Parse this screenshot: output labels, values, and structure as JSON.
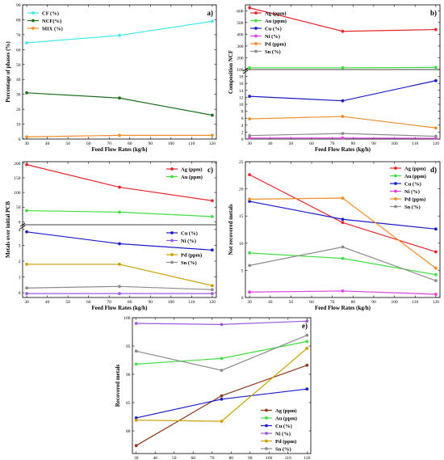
{
  "chart_data": [
    {
      "id": "a",
      "panel_label": "a)",
      "type": "line",
      "xlabel": "Feed Flow Rates (kg/h)",
      "ylabel": "Percentage of phases (%)",
      "x": [
        30,
        75,
        120
      ],
      "xlim": [
        28,
        122
      ],
      "xticks": [
        30,
        40,
        50,
        60,
        70,
        80,
        90,
        100,
        110,
        120
      ],
      "ylim": [
        0,
        90
      ],
      "yticks": [
        0,
        10,
        20,
        30,
        40,
        50,
        60,
        70,
        80,
        90
      ],
      "legend": "top-left",
      "series": [
        {
          "name": "CF (%)",
          "color": "#40e8e8",
          "values": [
            64.5,
            69.5,
            79
          ]
        },
        {
          "name": "NCF(%)",
          "color": "#1a6e1a",
          "values": [
            31,
            27.5,
            16
          ]
        },
        {
          "name": "MIX (%)",
          "color": "#f08c28",
          "values": [
            1.5,
            2.5,
            2.5
          ]
        }
      ]
    },
    {
      "id": "b",
      "panel_label": "b)",
      "type": "line",
      "xlabel": "Feed Flow Rates (kg/h)",
      "ylabel": "Composition NCF",
      "x": [
        30,
        75,
        120
      ],
      "xlim": [
        28,
        122
      ],
      "xticks": [
        30,
        40,
        50,
        60,
        70,
        80,
        90,
        100,
        110,
        120
      ],
      "broken_axis": {
        "upper": {
          "ylim": [
            100,
            650
          ],
          "yticks": [
            100,
            200,
            300,
            400,
            500,
            600
          ]
        },
        "lower": {
          "ylim": [
            0,
            20
          ],
          "yticks": [
            0,
            2,
            4,
            6,
            8,
            10,
            12,
            14,
            16,
            18
          ]
        }
      },
      "legend": "top-left",
      "series": [
        {
          "name": "Ag (ppm)",
          "color": "#e8262c",
          "values": [
            625,
            425,
            440
          ]
        },
        {
          "name": "Au (ppm)",
          "color": "#40e040",
          "values": [
            115,
            115,
            118
          ]
        },
        {
          "name": "Cu (%)",
          "color": "#1c1cc8",
          "values": [
            12.3,
            11.0,
            16.8
          ]
        },
        {
          "name": "Ni (%)",
          "color": "#e040e0",
          "values": [
            0.3,
            0.3,
            0.2
          ]
        },
        {
          "name": "Pd (ppm)",
          "color": "#f08c28",
          "values": [
            5.8,
            6.5,
            3.2
          ]
        },
        {
          "name": "Sn (%)",
          "color": "#8c8c8c",
          "values": [
            1.0,
            1.6,
            0.8
          ]
        }
      ]
    },
    {
      "id": "c",
      "panel_label": "c)",
      "type": "line",
      "xlabel": "Feed Flow Rates (kg/h)",
      "ylabel": "Metals over initial PCB",
      "x": [
        30,
        75,
        120
      ],
      "xlim": [
        28,
        122
      ],
      "xticks": [
        30,
        40,
        50,
        60,
        70,
        80,
        90,
        100,
        110,
        120
      ],
      "broken_axis": {
        "upper": {
          "ylim": [
            -10,
            205
          ],
          "yticks": [
            0,
            50,
            100,
            150,
            200
          ]
        },
        "lower": {
          "ylim": [
            -0.3,
            4.3
          ],
          "yticks": [
            0,
            1,
            2,
            3,
            4
          ]
        }
      },
      "legend": "right",
      "series": [
        {
          "name": "Ag (ppm)",
          "color": "#e8262c",
          "panel": "upper",
          "values": [
            195,
            118,
            72
          ]
        },
        {
          "name": "Au (ppm)",
          "color": "#40e040",
          "panel": "upper",
          "values": [
            38,
            33,
            18
          ]
        },
        {
          "name": "Cu (%)",
          "color": "#1c1cc8",
          "panel": "lower",
          "values": [
            3.85,
            3.1,
            2.7
          ]
        },
        {
          "name": "Ni (%)",
          "color": "#9b59e0",
          "panel": "lower",
          "values": [
            -0.05,
            -0.05,
            -0.05
          ]
        },
        {
          "name": "Pd (ppm)",
          "color": "#c8a000",
          "panel": "lower",
          "values": [
            1.8,
            1.8,
            0.45
          ]
        },
        {
          "name": "Sn (%)",
          "color": "#8c8c8c",
          "panel": "lower",
          "values": [
            0.3,
            0.4,
            0.2
          ]
        }
      ]
    },
    {
      "id": "d",
      "panel_label": "d)",
      "type": "line",
      "xlabel": "Feed Flow Rates (kg/h)",
      "ylabel": "Not recovered metals",
      "x": [
        30,
        75,
        120
      ],
      "xlim": [
        28,
        122
      ],
      "xticks": [
        30,
        40,
        50,
        60,
        70,
        80,
        90,
        100,
        110,
        120
      ],
      "ylim": [
        0,
        25
      ],
      "yticks": [
        0,
        5,
        10,
        15,
        20,
        25
      ],
      "legend": "top-right",
      "series": [
        {
          "name": "Ag (ppm)",
          "color": "#e8262c",
          "values": [
            22.6,
            13.8,
            8.4
          ]
        },
        {
          "name": "Au (ppm)",
          "color": "#40e040",
          "values": [
            8.2,
            7.2,
            4.2
          ]
        },
        {
          "name": "Cu (%)",
          "color": "#1c1cc8",
          "values": [
            17.7,
            14.4,
            12.6
          ]
        },
        {
          "name": "Ni (%)",
          "color": "#e040e0",
          "values": [
            1.0,
            1.2,
            0.6
          ]
        },
        {
          "name": "Pd (ppm)",
          "color": "#f08c28",
          "values": [
            18.1,
            18.3,
            5.4
          ]
        },
        {
          "name": "Sn (%)",
          "color": "#8c8c8c",
          "values": [
            5.9,
            9.3,
            3.1
          ]
        }
      ]
    },
    {
      "id": "e",
      "panel_label": "e)",
      "type": "line",
      "xlabel": "Feed Flow Rates (kg/h)",
      "ylabel": "Recovered metals",
      "x": [
        30,
        75,
        120
      ],
      "xlim": [
        28,
        122
      ],
      "xticks": [
        30,
        40,
        50,
        60,
        70,
        80,
        90,
        100,
        110,
        120
      ],
      "ylim": [
        76,
        100
      ],
      "yticks": [
        80,
        85,
        90,
        95,
        100
      ],
      "legend": "bottom-right",
      "series": [
        {
          "name": "Ag (ppm)",
          "color": "#8b3a1a",
          "values": [
            77.4,
            86.2,
            91.6
          ]
        },
        {
          "name": "Au (ppm)",
          "color": "#40e040",
          "values": [
            91.8,
            92.8,
            95.8
          ]
        },
        {
          "name": "Cu (%)",
          "color": "#1c1cc8",
          "values": [
            82.3,
            85.6,
            87.4
          ]
        },
        {
          "name": "Ni (%)",
          "color": "#9b59e0",
          "values": [
            99.0,
            98.8,
            99.4
          ]
        },
        {
          "name": "Pd (ppm)",
          "color": "#c8a000",
          "values": [
            81.9,
            81.7,
            94.6
          ]
        },
        {
          "name": "Sn (%)",
          "color": "#8c8c8c",
          "values": [
            94.1,
            90.7,
            96.9
          ]
        }
      ]
    }
  ]
}
